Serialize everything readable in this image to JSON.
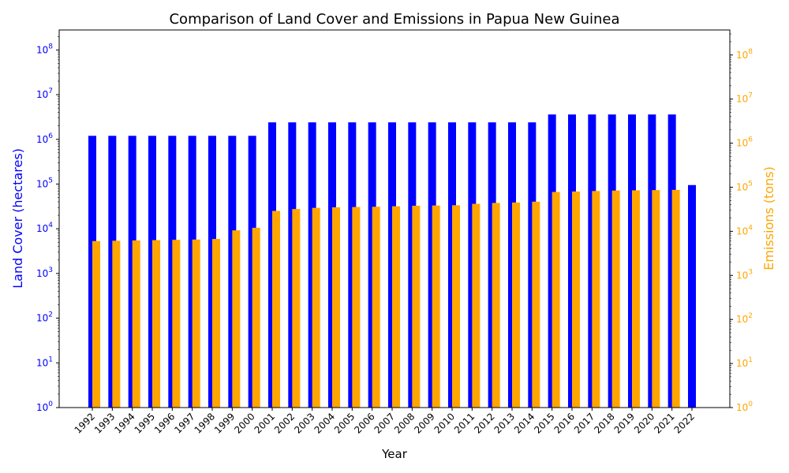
{
  "chart_data": {
    "type": "bar",
    "title": "Comparison of Land Cover and Emissions in Papua New Guinea",
    "xlabel": "Year",
    "ylabel_left": "Land Cover (hectares)",
    "ylabel_right": "Emissions (tons)",
    "yscale": "log",
    "ylim_left": [
      1,
      280000000
    ],
    "ylim_right": [
      1,
      370000000
    ],
    "left_ticks": [
      "10^0",
      "10^1",
      "10^2",
      "10^3",
      "10^4",
      "10^5",
      "10^6",
      "10^7",
      "10^8"
    ],
    "right_ticks": [
      "10^0",
      "10^1",
      "10^2",
      "10^3",
      "10^4",
      "10^5",
      "10^6",
      "10^7",
      "10^8"
    ],
    "categories": [
      "1992",
      "1993",
      "1994",
      "1995",
      "1996",
      "1997",
      "1998",
      "1999",
      "2000",
      "2001",
      "2002",
      "2003",
      "2004",
      "2005",
      "2006",
      "2007",
      "2008",
      "2009",
      "2010",
      "2011",
      "2012",
      "2013",
      "2014",
      "2015",
      "2016",
      "2017",
      "2018",
      "2019",
      "2020",
      "2021",
      "2022"
    ],
    "series": [
      {
        "axis": "left",
        "color": "#0000ff",
        "values": [
          1200000,
          1200000,
          1200000,
          1200000,
          1200000,
          1200000,
          1200000,
          1200000,
          1200000,
          2400000,
          2400000,
          2400000,
          2400000,
          2400000,
          2400000,
          2400000,
          2400000,
          2400000,
          2400000,
          2400000,
          2400000,
          2400000,
          2400000,
          3600000,
          3600000,
          3600000,
          3600000,
          3600000,
          3600000,
          3600000,
          95000
        ]
      },
      {
        "axis": "right",
        "color": "#ffa500",
        "values": [
          6000,
          6100,
          6200,
          6300,
          6400,
          6500,
          6700,
          10500,
          12000,
          29000,
          32000,
          34000,
          35000,
          35500,
          36000,
          37000,
          38000,
          38500,
          39000,
          42000,
          44000,
          45000,
          47000,
          78000,
          80000,
          82000,
          84000,
          85000,
          86000,
          87000,
          null
        ]
      }
    ],
    "grid": false,
    "legend": "none"
  },
  "colors": {
    "left_axis": "#0000ff",
    "right_axis": "#ffa500"
  }
}
